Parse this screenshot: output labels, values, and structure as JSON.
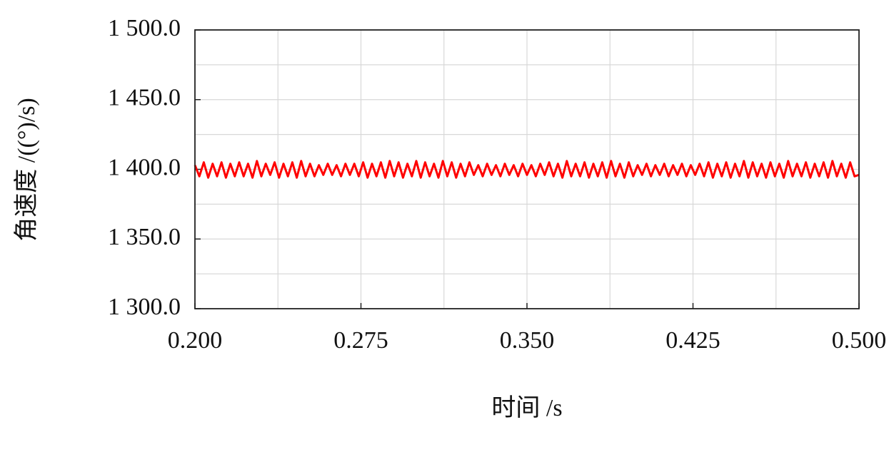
{
  "chart_data": {
    "type": "line",
    "xlabel": "时间 /s",
    "ylabel": "角速度 /((°)/s)",
    "color": "#ff0000",
    "x": [
      0.2,
      0.202,
      0.204,
      0.206,
      0.208,
      0.21,
      0.212,
      0.214,
      0.216,
      0.218,
      0.22,
      0.222,
      0.224,
      0.226,
      0.228,
      0.23,
      0.232,
      0.234,
      0.236,
      0.238,
      0.24,
      0.242,
      0.244,
      0.246,
      0.248,
      0.25,
      0.252,
      0.254,
      0.256,
      0.258,
      0.26,
      0.262,
      0.264,
      0.266,
      0.268,
      0.27,
      0.272,
      0.274,
      0.276,
      0.278,
      0.28,
      0.282,
      0.284,
      0.286,
      0.288,
      0.29,
      0.292,
      0.294,
      0.296,
      0.298,
      0.3,
      0.302,
      0.304,
      0.306,
      0.308,
      0.31,
      0.312,
      0.314,
      0.316,
      0.318,
      0.32,
      0.322,
      0.324,
      0.326,
      0.328,
      0.33,
      0.332,
      0.334,
      0.336,
      0.338,
      0.34,
      0.342,
      0.344,
      0.346,
      0.348,
      0.35,
      0.352,
      0.354,
      0.356,
      0.358,
      0.36,
      0.362,
      0.364,
      0.366,
      0.368,
      0.37,
      0.372,
      0.374,
      0.376,
      0.378,
      0.38,
      0.382,
      0.384,
      0.386,
      0.388,
      0.39,
      0.392,
      0.394,
      0.396,
      0.398,
      0.4,
      0.402,
      0.404,
      0.406,
      0.408,
      0.41,
      0.412,
      0.414,
      0.416,
      0.418,
      0.42,
      0.422,
      0.424,
      0.426,
      0.428,
      0.43,
      0.432,
      0.434,
      0.436,
      0.438,
      0.44,
      0.442,
      0.444,
      0.446,
      0.448,
      0.45,
      0.452,
      0.454,
      0.456,
      0.458,
      0.46,
      0.462,
      0.464,
      0.466,
      0.468,
      0.47,
      0.472,
      0.474,
      0.476,
      0.478,
      0.48,
      0.482,
      0.484,
      0.486,
      0.488,
      0.49,
      0.492,
      0.494,
      0.496,
      0.498,
      0.5
    ],
    "values": [
      1403,
      1395,
      1405,
      1394,
      1404,
      1395,
      1405,
      1394,
      1404,
      1395,
      1405,
      1395,
      1404,
      1394,
      1406,
      1395,
      1404,
      1396,
      1405,
      1394,
      1404,
      1395,
      1405,
      1394,
      1406,
      1395,
      1404,
      1395,
      1403,
      1396,
      1404,
      1396,
      1403,
      1395,
      1404,
      1396,
      1404,
      1395,
      1405,
      1394,
      1404,
      1395,
      1405,
      1394,
      1406,
      1395,
      1405,
      1394,
      1404,
      1395,
      1406,
      1394,
      1405,
      1395,
      1404,
      1394,
      1406,
      1395,
      1405,
      1394,
      1404,
      1395,
      1405,
      1396,
      1403,
      1395,
      1404,
      1396,
      1403,
      1395,
      1404,
      1396,
      1403,
      1395,
      1404,
      1396,
      1403,
      1395,
      1404,
      1396,
      1405,
      1395,
      1404,
      1394,
      1406,
      1395,
      1404,
      1395,
      1405,
      1394,
      1404,
      1395,
      1405,
      1394,
      1406,
      1395,
      1404,
      1394,
      1405,
      1395,
      1403,
      1396,
      1404,
      1395,
      1403,
      1396,
      1404,
      1395,
      1403,
      1396,
      1404,
      1395,
      1403,
      1396,
      1404,
      1395,
      1405,
      1394,
      1404,
      1395,
      1405,
      1394,
      1404,
      1395,
      1406,
      1394,
      1405,
      1395,
      1404,
      1394,
      1405,
      1395,
      1404,
      1394,
      1406,
      1395,
      1404,
      1395,
      1405,
      1394,
      1404,
      1395,
      1405,
      1394,
      1406,
      1395,
      1404,
      1394,
      1405,
      1395,
      1396
    ],
    "xlim": [
      0.2,
      0.5
    ],
    "xticks": [
      {
        "value": 0.2,
        "label": "0.200"
      },
      {
        "value": 0.275,
        "label": "0.275"
      },
      {
        "value": 0.35,
        "label": "0.350"
      },
      {
        "value": 0.425,
        "label": "0.425"
      },
      {
        "value": 0.5,
        "label": "0.500"
      }
    ],
    "xminorticks": [
      0.2375,
      0.3125,
      0.3875,
      0.4625
    ],
    "ylim": [
      1300,
      1500
    ],
    "yticks": [
      {
        "value": 1300,
        "label": "1 300.0"
      },
      {
        "value": 1350,
        "label": "1 350.0"
      },
      {
        "value": 1400,
        "label": "1 400.0"
      },
      {
        "value": 1450,
        "label": "1 450.0"
      },
      {
        "value": 1500,
        "label": "1 500.0"
      }
    ],
    "yminorticks": [
      1325,
      1375,
      1425,
      1475
    ],
    "grid": true
  }
}
